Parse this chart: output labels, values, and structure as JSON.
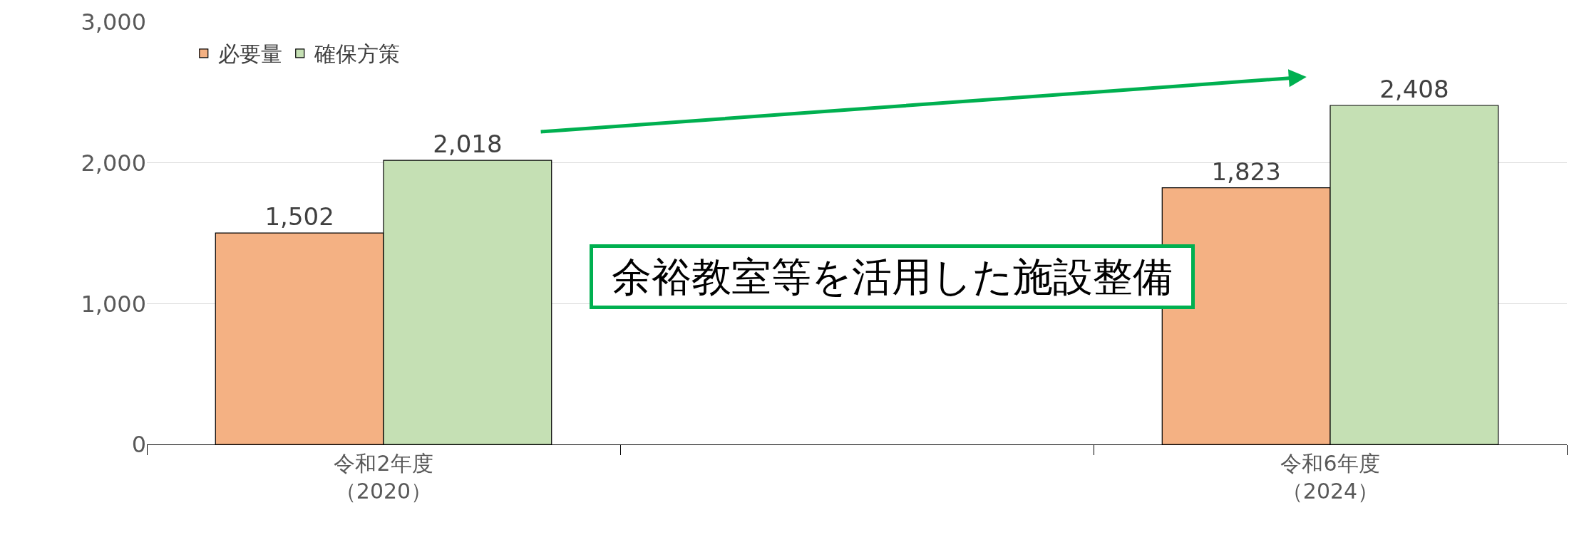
{
  "chart_data": {
    "type": "bar",
    "categories": [
      "令和2年度（2020）",
      null,
      "令和6年度（2024）"
    ],
    "series": [
      {
        "name": "必要量",
        "color": "#f4b183",
        "values": [
          1502,
          null,
          1823
        ],
        "value_labels": [
          "1,502",
          null,
          "1,823"
        ]
      },
      {
        "name": "確保方策",
        "color": "#c5e0b4",
        "values": [
          2018,
          null,
          2408
        ],
        "value_labels": [
          "2,018",
          null,
          "2,408"
        ]
      }
    ],
    "ylim": [
      0,
      3000
    ],
    "yticks": [
      0,
      {
        "value": 1000,
        "label": "1,000"
      },
      {
        "value": 2000,
        "label": "2,000"
      },
      {
        "value": 3000,
        "label": "3,000"
      }
    ],
    "grid": "y",
    "legend": "top left",
    "annotations": [
      "余裕教室等を活用した施設整備"
    ]
  }
}
